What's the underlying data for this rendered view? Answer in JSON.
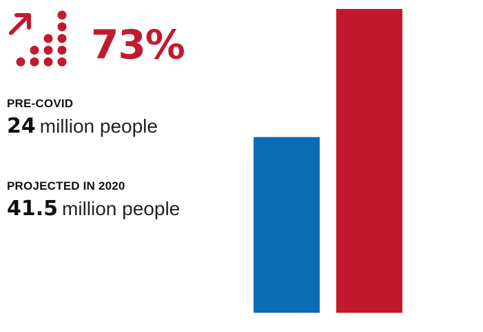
{
  "colors": {
    "accent_red": "#c3192f",
    "bar_blue": "#0b6db3",
    "text_dark": "#111111"
  },
  "headline": {
    "icon": "growth-people-icon",
    "percent_change": "73%"
  },
  "stats": [
    {
      "label": "PRE-COVID",
      "value": "24",
      "unit": "million people"
    },
    {
      "label": "PROJECTED IN 2020",
      "value": "41.5",
      "unit": "million people"
    }
  ],
  "chart_data": {
    "type": "bar",
    "categories": [
      "PRE-COVID",
      "PROJECTED IN 2020"
    ],
    "values": [
      24,
      41.5
    ],
    "colors": [
      "#0b6db3",
      "#c3192f"
    ],
    "ylim": [
      0,
      41.5
    ],
    "grid": false,
    "title": "",
    "xlabel": "",
    "ylabel": ""
  }
}
